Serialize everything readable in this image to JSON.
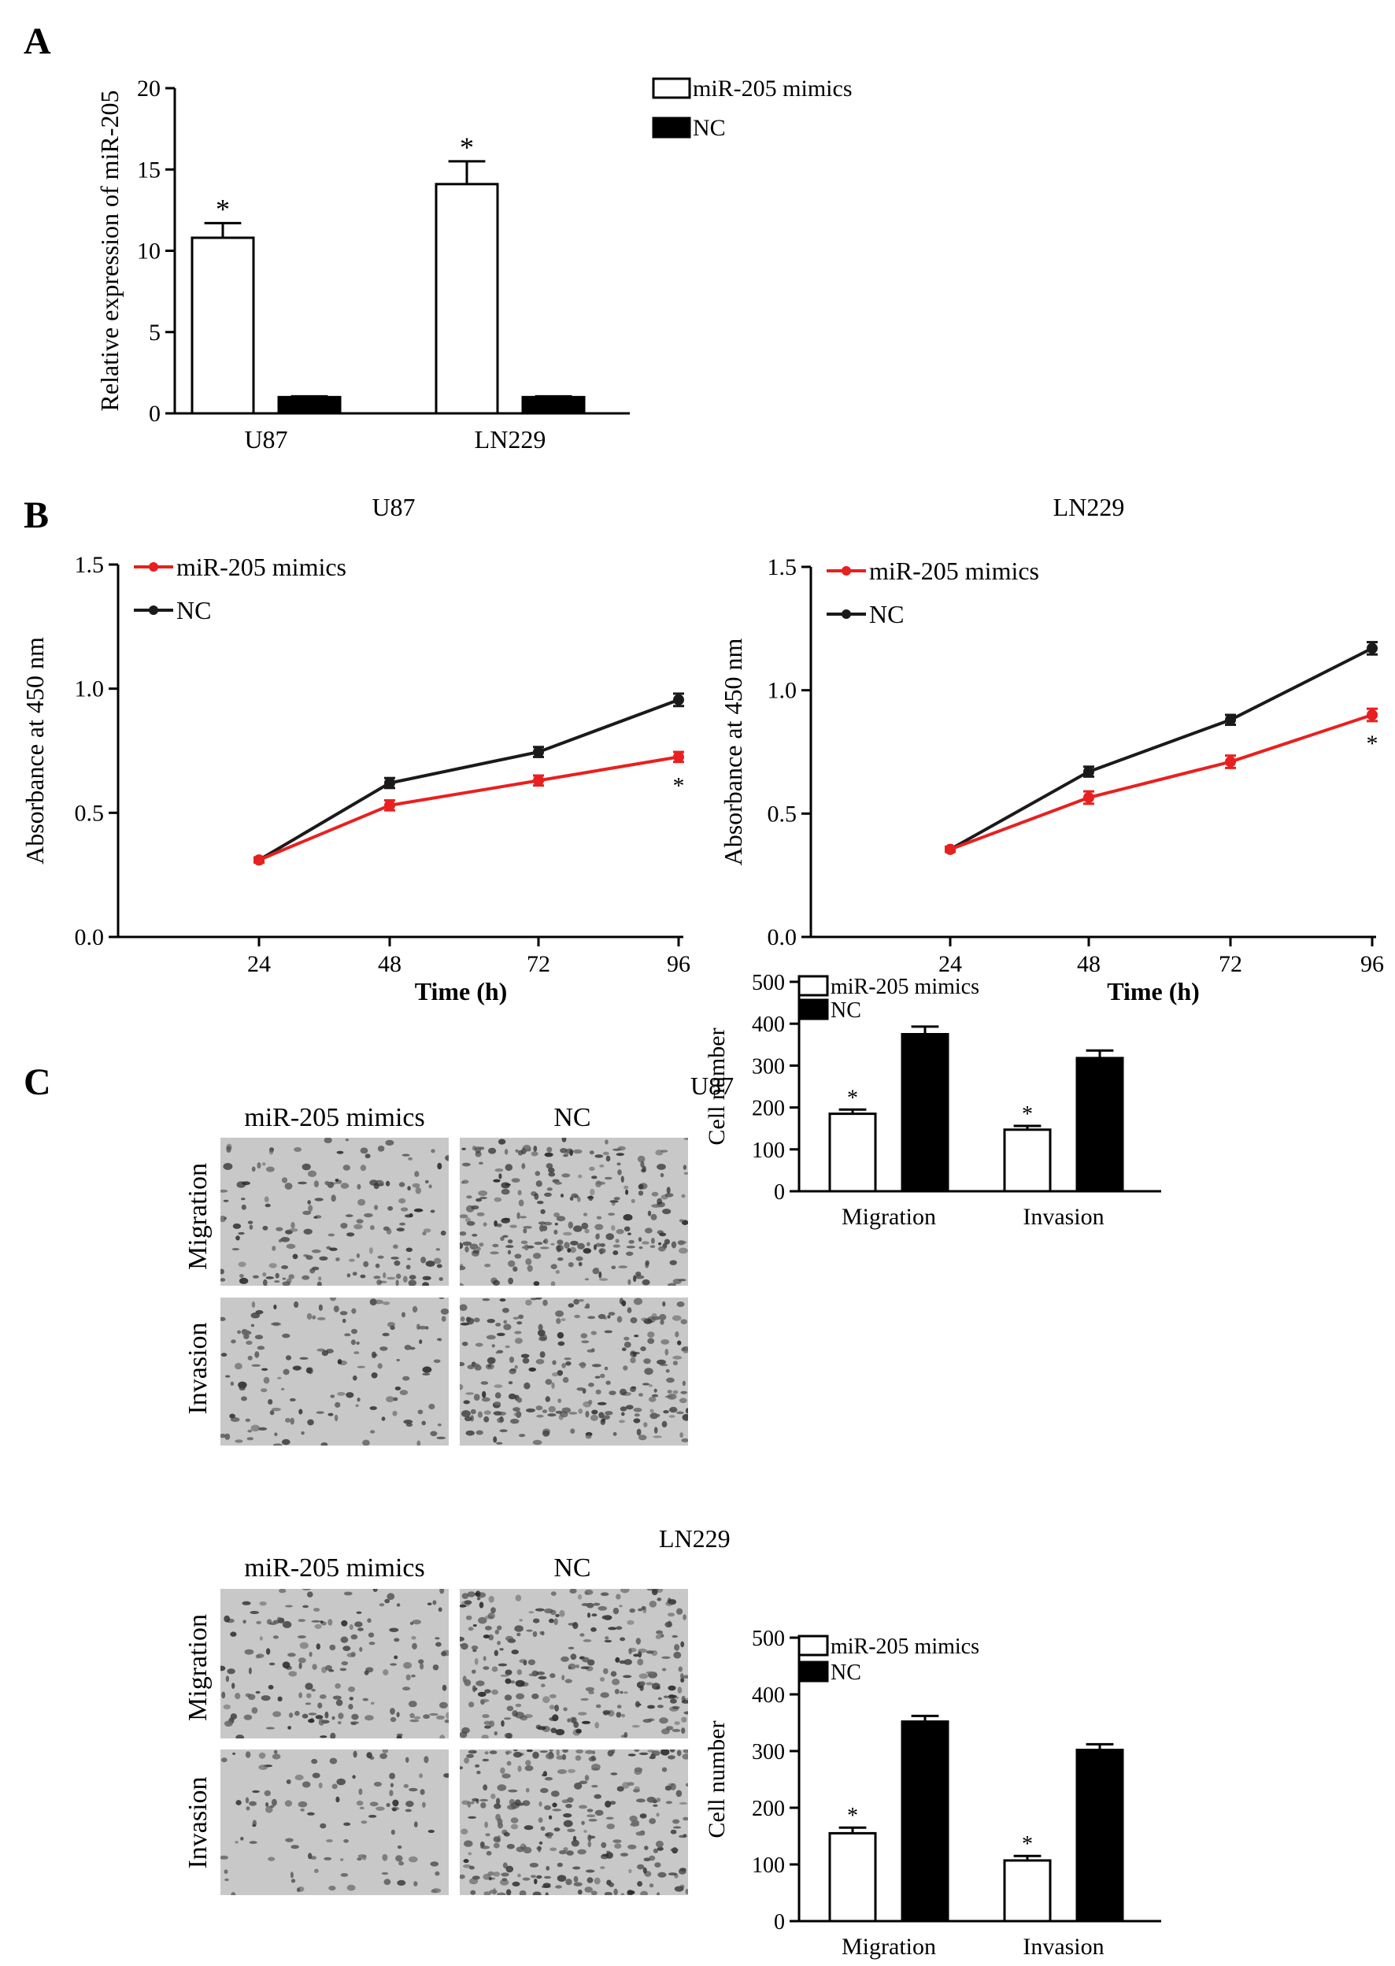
{
  "panel_labels": [
    "A",
    "B",
    "C"
  ],
  "panel_c": {
    "u87_title": "U87",
    "ln229_title": "LN229",
    "column_labels": [
      "miR-205 mimics",
      "NC"
    ],
    "row_labels": [
      "Migration",
      "Invasion"
    ]
  },
  "chart_data": [
    {
      "id": "A",
      "type": "bar",
      "title": "",
      "xlabel": "",
      "ylabel": "Relative  expression of miR-205",
      "categories": [
        "U87",
        "LN229"
      ],
      "series": [
        {
          "name": "miR-205 mimics",
          "values": [
            10.8,
            14.1
          ],
          "errors": [
            0.9,
            1.4
          ],
          "fill": "#ffffff"
        },
        {
          "name": "NC",
          "values": [
            1.0,
            1.0
          ],
          "errors": [
            0.05,
            0.05
          ],
          "fill": "#000000"
        }
      ],
      "significance": [
        "*",
        "*"
      ],
      "ylim": [
        0,
        20
      ],
      "yticks": [
        "0",
        "5",
        "10",
        "15",
        "20"
      ],
      "legend": "top-right",
      "grid": false
    },
    {
      "id": "B-U87",
      "type": "line",
      "title": "U87",
      "xlabel": "Time (h)",
      "ylabel": "Absorbance at 450 nm",
      "x": [
        24,
        48,
        72,
        96
      ],
      "xticks": [
        "24",
        "48",
        "72",
        "96"
      ],
      "series": [
        {
          "name": "miR-205 mimics",
          "values": [
            0.31,
            0.53,
            0.63,
            0.725
          ],
          "errors": [
            0.01,
            0.02,
            0.02,
            0.02
          ],
          "color": "#e8201f"
        },
        {
          "name": "NC",
          "values": [
            0.31,
            0.62,
            0.745,
            0.955
          ],
          "errors": [
            0.01,
            0.02,
            0.02,
            0.025
          ],
          "color": "#1a1a1a"
        }
      ],
      "significance": "*",
      "ylim": [
        0,
        1.5
      ],
      "yticks": [
        "0.0",
        "0.5",
        "1.0",
        "1.5"
      ],
      "legend": "top-left",
      "grid": false
    },
    {
      "id": "B-LN229",
      "type": "line",
      "title": "LN229",
      "xlabel": "Time (h)",
      "ylabel": "Absorbance at 450 nm",
      "x": [
        24,
        48,
        72,
        96
      ],
      "xticks": [
        "24",
        "48",
        "72",
        "96"
      ],
      "series": [
        {
          "name": "miR-205 mimics",
          "values": [
            0.355,
            0.565,
            0.71,
            0.9
          ],
          "errors": [
            0.01,
            0.025,
            0.025,
            0.025
          ],
          "color": "#e8201f"
        },
        {
          "name": "NC",
          "values": [
            0.355,
            0.67,
            0.88,
            1.17
          ],
          "errors": [
            0.01,
            0.02,
            0.02,
            0.025
          ],
          "color": "#1a1a1a"
        }
      ],
      "significance": "*",
      "ylim": [
        0,
        1.5
      ],
      "yticks": [
        "0.0",
        "0.5",
        "1.0",
        "1.5"
      ],
      "legend": "top-left",
      "grid": false
    },
    {
      "id": "C-U87",
      "type": "bar",
      "title": "U87",
      "xlabel": "",
      "ylabel": "Cell number",
      "categories": [
        "Migration",
        "Invasion"
      ],
      "series": [
        {
          "name": "miR-205 mimics",
          "values": [
            185,
            147
          ],
          "errors": [
            10,
            9
          ],
          "fill": "#ffffff"
        },
        {
          "name": "NC",
          "values": [
            375,
            318
          ],
          "errors": [
            18,
            18
          ],
          "fill": "#000000"
        }
      ],
      "significance": [
        "*",
        "*"
      ],
      "ylim": [
        0,
        500
      ],
      "yticks": [
        "0",
        "100",
        "200",
        "300",
        "400",
        "500"
      ],
      "legend": "top-left",
      "grid": false
    },
    {
      "id": "C-LN229",
      "type": "bar",
      "title": "LN229",
      "xlabel": "",
      "ylabel": "Cell number",
      "categories": [
        "Migration",
        "Invasion"
      ],
      "series": [
        {
          "name": "miR-205 mimics",
          "values": [
            155,
            107
          ],
          "errors": [
            10,
            8
          ],
          "fill": "#ffffff"
        },
        {
          "name": "NC",
          "values": [
            352,
            302
          ],
          "errors": [
            10,
            10
          ],
          "fill": "#000000"
        }
      ],
      "significance": [
        "*",
        "*"
      ],
      "ylim": [
        0,
        500
      ],
      "yticks": [
        "0",
        "100",
        "200",
        "300",
        "400",
        "500"
      ],
      "legend": "top-left",
      "grid": false
    }
  ]
}
